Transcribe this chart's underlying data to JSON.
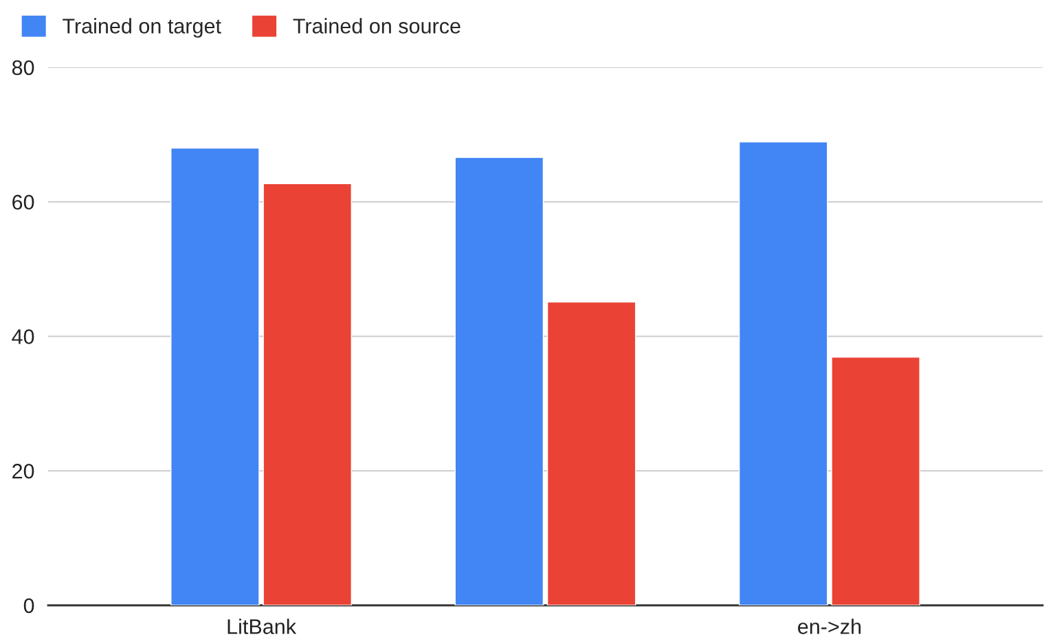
{
  "chart_data": {
    "type": "bar",
    "categories": [
      "LitBank",
      null,
      "en->zh"
    ],
    "series": [
      {
        "name": "Trained on target",
        "color": "#4285f4",
        "values": [
          68.0,
          66.6,
          68.9
        ]
      },
      {
        "name": "Trained on source",
        "color": "#ea4335",
        "values": [
          62.7,
          45.1,
          36.9
        ]
      }
    ],
    "ylim": [
      0,
      80
    ],
    "yticks": [
      0,
      20,
      40,
      60,
      80
    ],
    "grid": "y",
    "legend": "top left"
  }
}
